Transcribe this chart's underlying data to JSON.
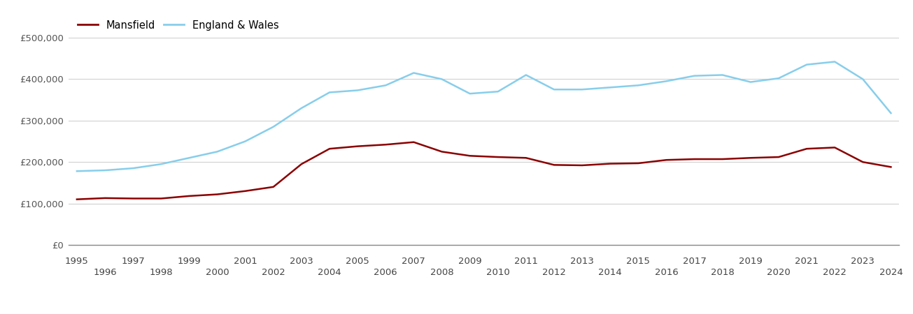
{
  "years": [
    1995,
    1996,
    1997,
    1998,
    1999,
    2000,
    2001,
    2002,
    2003,
    2004,
    2005,
    2006,
    2007,
    2008,
    2009,
    2010,
    2011,
    2012,
    2013,
    2014,
    2015,
    2016,
    2017,
    2018,
    2019,
    2020,
    2021,
    2022,
    2023,
    2024
  ],
  "mansfield": [
    110000,
    113000,
    112000,
    112000,
    118000,
    122000,
    130000,
    140000,
    195000,
    232000,
    238000,
    242000,
    248000,
    225000,
    215000,
    212000,
    210000,
    193000,
    192000,
    196000,
    197000,
    205000,
    207000,
    207000,
    210000,
    212000,
    232000,
    235000,
    200000,
    188000
  ],
  "england_wales": [
    178000,
    180000,
    185000,
    195000,
    210000,
    225000,
    250000,
    285000,
    330000,
    368000,
    373000,
    385000,
    415000,
    400000,
    365000,
    370000,
    410000,
    375000,
    375000,
    380000,
    385000,
    395000,
    408000,
    410000,
    393000,
    402000,
    435000,
    442000,
    400000,
    318000
  ],
  "mansfield_color": "#8B0000",
  "england_wales_color": "#87CEEB",
  "background_color": "#ffffff",
  "grid_color": "#d0d0d0",
  "ylim": [
    0,
    500000
  ],
  "yticks": [
    0,
    100000,
    200000,
    300000,
    400000,
    500000
  ],
  "ytick_labels": [
    "£0",
    "£100,000",
    "£200,000",
    "£300,000",
    "£400,000",
    "£500,000"
  ],
  "line_width": 1.8,
  "legend_labels": [
    "Mansfield",
    "England & Wales"
  ],
  "title": "",
  "tick_fontsize": 9.5,
  "legend_fontsize": 10.5
}
